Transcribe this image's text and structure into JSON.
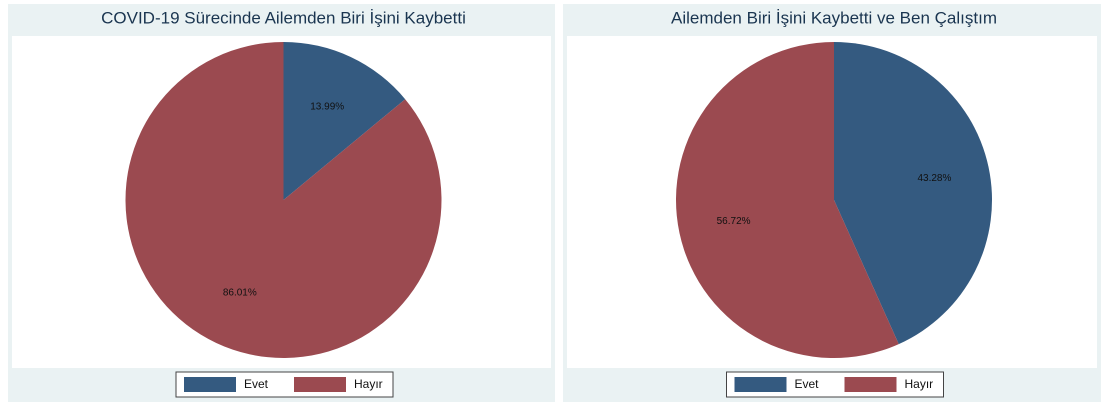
{
  "chart_data": [
    {
      "type": "pie",
      "title": "COVID-19 Sürecinde Ailemden Biri İşini Kaybetti",
      "categories": [
        "Evet",
        "Hayır"
      ],
      "values": [
        13.99,
        86.01
      ],
      "value_labels": [
        "13.99%",
        "86.01%"
      ],
      "colors": [
        "#345a80",
        "#9b4a50"
      ],
      "legend": "bottom"
    },
    {
      "type": "pie",
      "title": "Ailemden Biri İşini Kaybetti ve Ben Çalıştım",
      "categories": [
        "Evet",
        "Hayır"
      ],
      "values": [
        43.28,
        56.72
      ],
      "value_labels": [
        "43.28%",
        "56.72%"
      ],
      "colors": [
        "#345a80",
        "#9b4a50"
      ],
      "legend": "bottom"
    }
  ]
}
